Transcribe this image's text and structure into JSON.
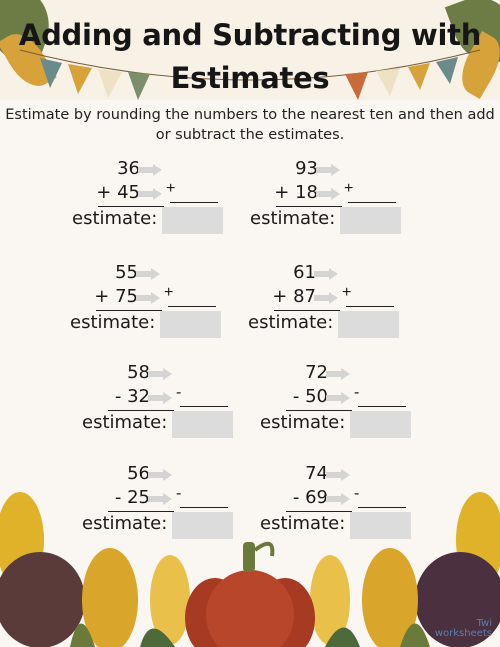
{
  "worksheet": {
    "title_line1": "Adding and Subtracting with",
    "title_line2": "Estimates",
    "instructions": "Estimate by rounding the numbers to the nearest ten and then add or subtract the estimates.",
    "estimate_label": "estimate:",
    "brand_line1": "Twi",
    "brand_line2": "worksheets"
  },
  "problems": [
    {
      "top": "36",
      "bottom": "+ 45",
      "op": "+"
    },
    {
      "top": "93",
      "bottom": "+ 18",
      "op": "+"
    },
    {
      "top": "55",
      "bottom": "+ 75",
      "op": "+"
    },
    {
      "top": "61",
      "bottom": "+ 87",
      "op": "+"
    },
    {
      "top": "58",
      "bottom": "- 32",
      "op": "-"
    },
    {
      "top": "72",
      "bottom": "- 50",
      "op": "-"
    },
    {
      "top": "56",
      "bottom": "- 25",
      "op": "-"
    },
    {
      "top": "74",
      "bottom": "- 69",
      "op": "-"
    }
  ],
  "colors": {
    "arrow": "#d4d4d4",
    "estimate_box": "#dcdcdc",
    "pumpkin": "#b8462a",
    "leaf_yellow": "#e0b22a",
    "leaf_green": "#5a6b3a"
  }
}
